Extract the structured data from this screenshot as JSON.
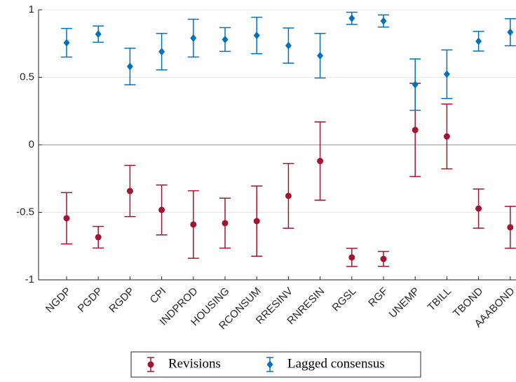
{
  "chart_data": {
    "type": "errorbar",
    "categories": [
      "NGDP",
      "PGDP",
      "RGDP",
      "CPI",
      "INDPROD",
      "HOUSING",
      "RCONSUM",
      "RRESINV",
      "RNRESIN",
      "RGSL",
      "RGF",
      "UNEMP",
      "TBILL",
      "TBOND",
      "AAABOND"
    ],
    "series": [
      {
        "name": "Revisions",
        "color": "#a2142f",
        "marker": "circle",
        "values": [
          -0.544,
          -0.684,
          -0.342,
          -0.482,
          -0.59,
          -0.58,
          -0.565,
          -0.378,
          -0.12,
          -0.834,
          -0.845,
          0.11,
          0.062,
          -0.472,
          -0.611
        ],
        "errors": [
          0.19,
          0.08,
          0.19,
          0.185,
          0.25,
          0.185,
          0.26,
          0.24,
          0.29,
          0.067,
          0.055,
          0.345,
          0.24,
          0.145,
          0.155
        ]
      },
      {
        "name": "Lagged consensus",
        "color": "#0072bd",
        "marker": "diamond",
        "values": [
          0.756,
          0.82,
          0.58,
          0.69,
          0.79,
          0.78,
          0.81,
          0.735,
          0.66,
          0.937,
          0.917,
          0.446,
          0.523,
          0.767,
          0.834
        ],
        "errors": [
          0.106,
          0.06,
          0.135,
          0.135,
          0.14,
          0.088,
          0.135,
          0.13,
          0.165,
          0.045,
          0.045,
          0.19,
          0.18,
          0.073,
          0.1
        ]
      }
    ],
    "ylim": [
      -1,
      1
    ],
    "yticks": [
      1,
      0.5,
      0,
      -0.5,
      -1
    ],
    "grid": true,
    "legend": "bottom"
  }
}
